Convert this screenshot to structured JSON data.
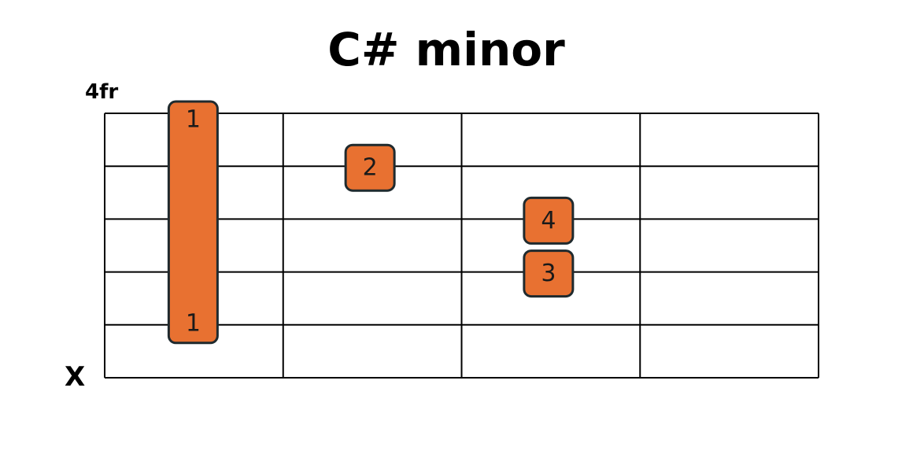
{
  "title": "C# minor",
  "position_label": "4fr",
  "mute_label": "X",
  "colors": {
    "dot_fill": "#E87131",
    "dot_stroke": "#1f2a2e",
    "grid": "#000000",
    "text": "#1a1a1a"
  },
  "diagram": {
    "frets_shown": 4,
    "strings": 6,
    "barre": {
      "fret": 1,
      "from_row": 0,
      "to_row": 4,
      "finger_top": "1",
      "finger_bottom": "1"
    },
    "dots": [
      {
        "fret": 2,
        "row": 1,
        "finger": "2"
      },
      {
        "fret": 3,
        "row": 2,
        "finger": "4"
      },
      {
        "fret": 3,
        "row": 3,
        "finger": "3"
      }
    ]
  }
}
